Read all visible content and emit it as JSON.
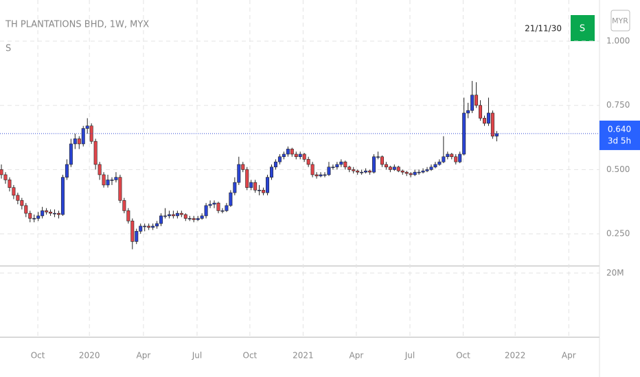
{
  "chart_data": {
    "type": "candlestick",
    "title": "TH PLANTATIONS BHD, 1W, MYX",
    "subtitle": "S",
    "date_label": "21/11/30",
    "button": "S",
    "currency": "MYR",
    "countdown": "3d 5h",
    "last_price": {
      "value": 0.64,
      "label": "0.640"
    },
    "up_color": "#2a44d4",
    "down_color": "#e0454a",
    "grid": true,
    "open": [
      0.5,
      0.48,
      0.46,
      0.43,
      0.4,
      0.38,
      0.36,
      0.33,
      0.31,
      0.31,
      0.32,
      0.34,
      0.335,
      0.33,
      0.33,
      0.325,
      0.47,
      0.52,
      0.6,
      0.62,
      0.6,
      0.66,
      0.67,
      0.61,
      0.52,
      0.48,
      0.44,
      0.46,
      0.46,
      0.47,
      0.38,
      0.34,
      0.3,
      0.22,
      0.26,
      0.28,
      0.28,
      0.275,
      0.28,
      0.29,
      0.32,
      0.32,
      0.325,
      0.32,
      0.33,
      0.325,
      0.31,
      0.31,
      0.305,
      0.31,
      0.32,
      0.36,
      0.365,
      0.37,
      0.34,
      0.34,
      0.36,
      0.41,
      0.45,
      0.52,
      0.5,
      0.43,
      0.45,
      0.42,
      0.42,
      0.41,
      0.47,
      0.51,
      0.53,
      0.55,
      0.56,
      0.58,
      0.56,
      0.55,
      0.56,
      0.54,
      0.52,
      0.48,
      0.475,
      0.48,
      0.48,
      0.51,
      0.51,
      0.52,
      0.53,
      0.51,
      0.5,
      0.495,
      0.49,
      0.49,
      0.495,
      0.49,
      0.55,
      0.55,
      0.52,
      0.51,
      0.5,
      0.51,
      0.495,
      0.49,
      0.485,
      0.48,
      0.49,
      0.49,
      0.495,
      0.5,
      0.51,
      0.52,
      0.53,
      0.55,
      0.56,
      0.55,
      0.53,
      0.56,
      0.72,
      0.73,
      0.79,
      0.75,
      0.7,
      0.68,
      0.72,
      0.63
    ],
    "high": [
      0.52,
      0.49,
      0.47,
      0.44,
      0.41,
      0.39,
      0.37,
      0.34,
      0.325,
      0.335,
      0.355,
      0.35,
      0.345,
      0.345,
      0.34,
      0.48,
      0.54,
      0.62,
      0.64,
      0.63,
      0.67,
      0.7,
      0.68,
      0.62,
      0.53,
      0.49,
      0.48,
      0.47,
      0.49,
      0.48,
      0.39,
      0.35,
      0.31,
      0.27,
      0.29,
      0.29,
      0.29,
      0.29,
      0.3,
      0.33,
      0.35,
      0.34,
      0.34,
      0.34,
      0.34,
      0.33,
      0.32,
      0.32,
      0.32,
      0.33,
      0.37,
      0.38,
      0.38,
      0.375,
      0.35,
      0.37,
      0.42,
      0.47,
      0.55,
      0.53,
      0.51,
      0.46,
      0.46,
      0.44,
      0.43,
      0.48,
      0.52,
      0.54,
      0.56,
      0.57,
      0.59,
      0.585,
      0.57,
      0.57,
      0.565,
      0.55,
      0.53,
      0.49,
      0.49,
      0.49,
      0.53,
      0.52,
      0.53,
      0.54,
      0.535,
      0.515,
      0.51,
      0.5,
      0.5,
      0.505,
      0.5,
      0.56,
      0.57,
      0.555,
      0.53,
      0.515,
      0.52,
      0.515,
      0.5,
      0.495,
      0.49,
      0.5,
      0.5,
      0.505,
      0.51,
      0.52,
      0.53,
      0.54,
      0.63,
      0.57,
      0.565,
      0.56,
      0.57,
      0.78,
      0.76,
      0.845,
      0.84,
      0.77,
      0.71,
      0.78,
      0.73,
      0.65
    ],
    "low": [
      0.465,
      0.445,
      0.415,
      0.385,
      0.365,
      0.345,
      0.315,
      0.295,
      0.295,
      0.3,
      0.31,
      0.325,
      0.32,
      0.315,
      0.31,
      0.32,
      0.46,
      0.51,
      0.58,
      0.58,
      0.59,
      0.64,
      0.6,
      0.5,
      0.46,
      0.43,
      0.43,
      0.44,
      0.45,
      0.37,
      0.33,
      0.29,
      0.19,
      0.21,
      0.25,
      0.26,
      0.265,
      0.265,
      0.27,
      0.28,
      0.31,
      0.31,
      0.31,
      0.31,
      0.315,
      0.3,
      0.3,
      0.295,
      0.3,
      0.305,
      0.31,
      0.35,
      0.35,
      0.33,
      0.33,
      0.335,
      0.355,
      0.4,
      0.44,
      0.49,
      0.42,
      0.42,
      0.41,
      0.4,
      0.4,
      0.4,
      0.46,
      0.5,
      0.52,
      0.54,
      0.55,
      0.55,
      0.54,
      0.54,
      0.53,
      0.51,
      0.47,
      0.465,
      0.47,
      0.47,
      0.475,
      0.5,
      0.5,
      0.51,
      0.5,
      0.49,
      0.485,
      0.48,
      0.48,
      0.485,
      0.48,
      0.485,
      0.54,
      0.51,
      0.5,
      0.49,
      0.495,
      0.49,
      0.48,
      0.475,
      0.47,
      0.475,
      0.48,
      0.485,
      0.49,
      0.495,
      0.505,
      0.515,
      0.525,
      0.54,
      0.54,
      0.52,
      0.525,
      0.555,
      0.7,
      0.72,
      0.74,
      0.69,
      0.67,
      0.67,
      0.62,
      0.61
    ],
    "close": [
      0.48,
      0.46,
      0.43,
      0.4,
      0.38,
      0.36,
      0.33,
      0.31,
      0.31,
      0.32,
      0.34,
      0.335,
      0.33,
      0.33,
      0.325,
      0.47,
      0.52,
      0.6,
      0.62,
      0.6,
      0.66,
      0.67,
      0.61,
      0.52,
      0.48,
      0.44,
      0.46,
      0.46,
      0.47,
      0.38,
      0.34,
      0.3,
      0.22,
      0.26,
      0.28,
      0.28,
      0.275,
      0.28,
      0.29,
      0.32,
      0.32,
      0.325,
      0.32,
      0.33,
      0.325,
      0.31,
      0.31,
      0.305,
      0.31,
      0.32,
      0.36,
      0.365,
      0.37,
      0.34,
      0.34,
      0.36,
      0.41,
      0.45,
      0.52,
      0.5,
      0.43,
      0.45,
      0.42,
      0.42,
      0.41,
      0.47,
      0.51,
      0.53,
      0.55,
      0.56,
      0.58,
      0.56,
      0.55,
      0.56,
      0.54,
      0.52,
      0.48,
      0.475,
      0.48,
      0.48,
      0.51,
      0.51,
      0.52,
      0.53,
      0.51,
      0.5,
      0.495,
      0.49,
      0.49,
      0.495,
      0.49,
      0.55,
      0.55,
      0.52,
      0.51,
      0.5,
      0.51,
      0.495,
      0.49,
      0.485,
      0.48,
      0.49,
      0.49,
      0.495,
      0.5,
      0.51,
      0.52,
      0.53,
      0.55,
      0.56,
      0.55,
      0.53,
      0.56,
      0.72,
      0.73,
      0.79,
      0.75,
      0.7,
      0.68,
      0.72,
      0.63,
      0.64
    ],
    "ylim": [
      0.125,
      1.16
    ],
    "yticks": [
      {
        "value": 0.25,
        "label": "0.250"
      },
      {
        "value": 0.5,
        "label": "0.500"
      },
      {
        "value": 0.75,
        "label": "0.750"
      },
      {
        "value": 1,
        "label": "1.000"
      }
    ],
    "xlim": [
      -0.34,
      146.1
    ],
    "xticks": [
      {
        "value": 8.9,
        "label": "Oct"
      },
      {
        "value": 21.5,
        "label": "2020"
      },
      {
        "value": 34.7,
        "label": "Apr"
      },
      {
        "value": 47.8,
        "label": "Jul"
      },
      {
        "value": 60.7,
        "label": "Oct"
      },
      {
        "value": 73.7,
        "label": "2021"
      },
      {
        "value": 86.7,
        "label": "Apr"
      },
      {
        "value": 99.8,
        "label": "Jul"
      },
      {
        "value": 112.8,
        "label": "Oct"
      },
      {
        "value": 125.5,
        "label": "2022"
      },
      {
        "value": 138.6,
        "label": "Apr"
      }
    ],
    "volume_lim": [
      0,
      22200000
    ],
    "volume_ticks": [
      {
        "value": 20000000,
        "label": "20M"
      }
    ]
  }
}
